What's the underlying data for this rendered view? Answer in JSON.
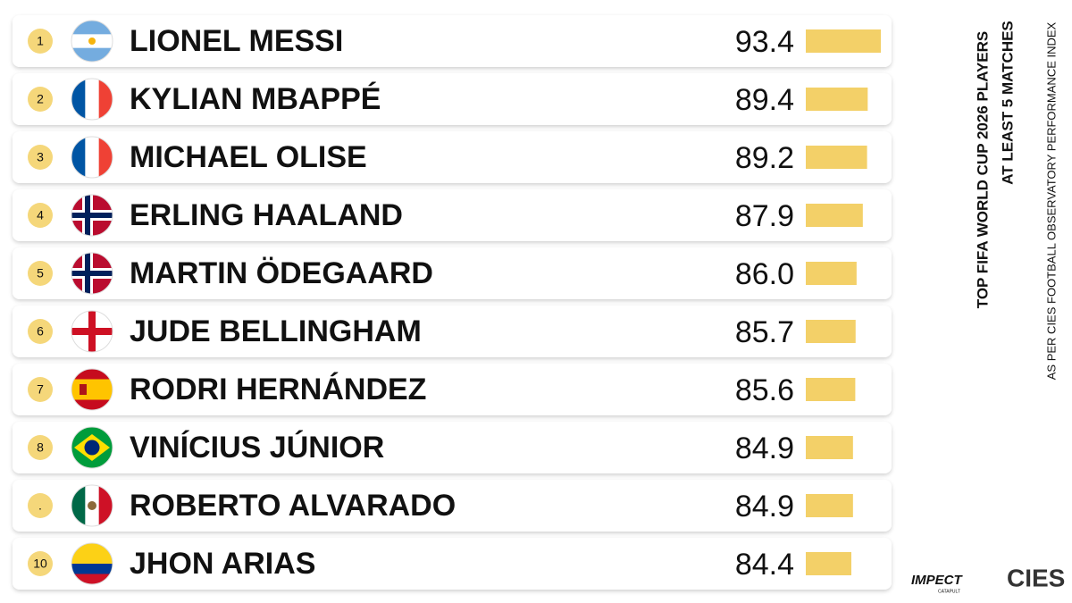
{
  "chart_data": {
    "type": "bar",
    "orientation": "horizontal",
    "title": "TOP FIFA WORLD CUP 2026 PLAYERS",
    "subtitle": "AT LEAST 5 MATCHES",
    "source": "AS PER CIES FOOTBALL OBSERVATORY PERFORMANCE INDEX",
    "ranks": [
      "1",
      "2",
      "3",
      "4",
      "5",
      "6",
      "7",
      "8",
      ".",
      "10"
    ],
    "categories": [
      "LIONEL MESSI",
      "KYLIAN MBAPPÉ",
      "MICHAEL OLISE",
      "ERLING HAALAND",
      "MARTIN ÖDEGAARD",
      "JUDE BELLINGHAM",
      "RODRI HERNÁNDEZ",
      "VINÍCIUS JÚNIOR",
      "ROBERTO ALVARADO",
      "JHON ARIAS"
    ],
    "values": [
      93.4,
      89.4,
      89.2,
      87.9,
      86.0,
      85.7,
      85.6,
      84.9,
      84.9,
      84.4
    ],
    "value_labels": [
      "93.4",
      "89.4",
      "89.2",
      "87.9",
      "86.0",
      "85.7",
      "85.6",
      "84.9",
      "84.9",
      "84.4"
    ],
    "color": "#f3d068",
    "logos": [
      "IMPECT",
      "CATAPULT",
      "CIES"
    ]
  }
}
